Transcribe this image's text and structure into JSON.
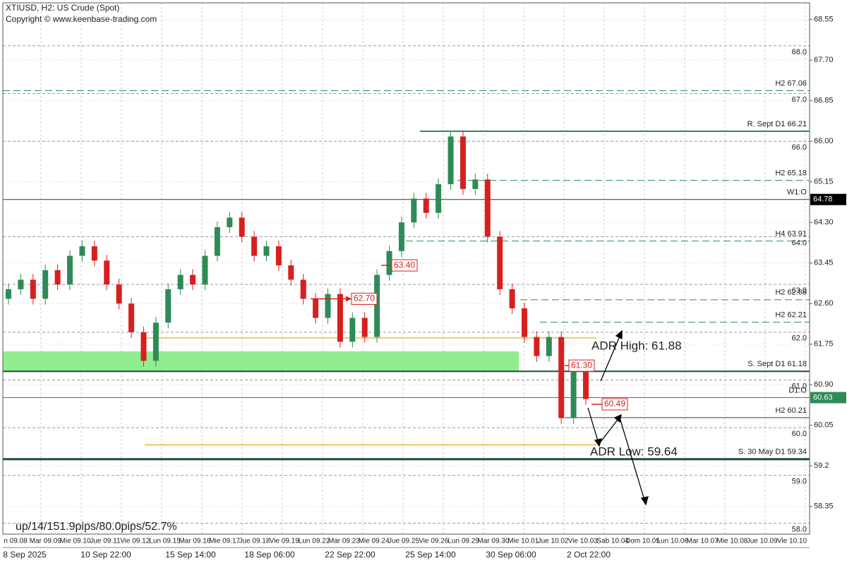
{
  "chart_data": {
    "type": "candlestick",
    "title": "XTIUSD, H2:  US Crude (Spot)",
    "subtitle": "Copyright © www.keenbase-trading.com",
    "stats_text": "up/14/151.9pips/80.0pips/52.7%",
    "ylim": [
      57.77,
      68.9
    ],
    "yticks": [
      68.55,
      {
        "value": 67.7,
        "label": "67.70"
      },
      66.85,
      {
        "value": 66,
        "label": "66.00"
      },
      65.15,
      {
        "value": 64.3,
        "label": "64.30"
      },
      63.45,
      {
        "value": 62.6,
        "label": "62.60"
      },
      61.75,
      {
        "value": 60.9,
        "label": "60.90"
      },
      60.05,
      59.2,
      58.35
    ],
    "round_levels": [
      {
        "value": 68,
        "label": "68.0"
      },
      {
        "value": 67,
        "label": "67.0"
      },
      {
        "value": 66,
        "label": "66.0"
      },
      {
        "value": 64,
        "label": "64.0"
      },
      {
        "value": 63,
        "label": "63.0"
      },
      {
        "value": 62,
        "label": "62.0"
      },
      {
        "value": 61,
        "label": "61.0"
      },
      {
        "value": 60,
        "label": "60.0"
      },
      {
        "value": 59,
        "label": "59.0"
      },
      {
        "value": 58,
        "label": "58.0"
      }
    ],
    "levels": [
      {
        "label": "H2 67.06",
        "value": 67.06,
        "color": "#2e8b57",
        "dash": true
      },
      {
        "label": "R. Sept D1 66.21",
        "value": 66.21,
        "color": "#2e8b57",
        "dash": false,
        "width": 2
      },
      {
        "label": "H2 65.18",
        "value": 65.18,
        "color": "#2e8b57",
        "dash": true
      },
      {
        "label": "W1:O",
        "value": 64.78,
        "color": "#333333",
        "dash": false,
        "price_box": true
      },
      {
        "label": "H4 63.91",
        "value": 63.91,
        "color": "#2e8b57",
        "dash": true
      },
      {
        "label": "H2 62.68",
        "value": 62.68,
        "color": "#2e8b57",
        "dash": true
      },
      {
        "label": "H2 62.21",
        "value": 62.21,
        "color": "#2e8b57",
        "dash": true
      },
      {
        "label": "S. Sept D1 61.18",
        "value": 61.18,
        "color": "#1f4d3d",
        "dash": false,
        "width": 2
      },
      {
        "label": "D1:O",
        "value": 60.63,
        "color": "#2e8b57",
        "dash": false,
        "price_box": true
      },
      {
        "label": "H2 60.21",
        "value": 60.21,
        "color": "#1f4d3d",
        "dash": false
      },
      {
        "label": "S. 30 May D1 59.34",
        "value": 59.34,
        "color": "#1f4d3d",
        "dash": false,
        "width": 3
      }
    ],
    "zone": {
      "values": [
        61.18,
        61.6
      ],
      "color": "#90ee90"
    },
    "adr": [
      {
        "label": "ADR High: 61.88",
        "value": 61.88
      },
      {
        "label": "ADR Low: 59.64",
        "value": 59.64
      }
    ],
    "adr_color": "#e8a317",
    "markers": [
      {
        "label": "63.40",
        "value": 63.4
      },
      {
        "label": "62.70",
        "value": 62.7
      },
      {
        "label": "61.30",
        "value": 61.3
      },
      {
        "label": "60.49",
        "value": 60.49
      }
    ],
    "up_color": "#2e8b57",
    "down_color": "#d62020",
    "ohlc": [
      [
        62.7,
        63.02,
        62.58,
        62.9
      ],
      [
        62.9,
        63.22,
        62.78,
        63.1
      ],
      [
        63.1,
        63.22,
        62.58,
        62.7
      ],
      [
        62.7,
        63.42,
        62.58,
        63.3
      ],
      [
        63.3,
        63.42,
        62.88,
        63.0
      ],
      [
        63.0,
        63.72,
        62.88,
        63.6
      ],
      [
        63.6,
        63.92,
        63.48,
        63.8
      ],
      [
        63.8,
        63.92,
        63.38,
        63.5
      ],
      [
        63.5,
        63.62,
        62.88,
        63.0
      ],
      [
        63.0,
        63.12,
        62.48,
        62.6
      ],
      [
        62.6,
        62.72,
        61.88,
        62.0
      ],
      [
        62.0,
        62.12,
        61.28,
        61.4
      ],
      [
        61.4,
        62.32,
        61.28,
        62.2
      ],
      [
        62.2,
        63.02,
        62.08,
        62.9
      ],
      [
        62.9,
        63.32,
        62.78,
        63.2
      ],
      [
        63.2,
        63.32,
        62.88,
        63.0
      ],
      [
        63.0,
        63.72,
        62.88,
        63.6
      ],
      [
        63.6,
        64.32,
        63.48,
        64.2
      ],
      [
        64.2,
        64.52,
        64.08,
        64.4
      ],
      [
        64.4,
        64.52,
        63.88,
        64.0
      ],
      [
        64.0,
        64.12,
        63.48,
        63.6
      ],
      [
        63.6,
        63.92,
        63.48,
        63.8
      ],
      [
        63.8,
        63.92,
        63.28,
        63.4
      ],
      [
        63.4,
        63.52,
        62.98,
        63.1
      ],
      [
        63.1,
        63.22,
        62.58,
        62.7
      ],
      [
        62.7,
        62.82,
        62.18,
        62.3
      ],
      [
        62.3,
        62.92,
        62.18,
        62.8
      ],
      [
        62.8,
        62.92,
        61.68,
        61.8
      ],
      [
        61.8,
        62.42,
        61.68,
        62.3
      ],
      [
        62.3,
        62.42,
        61.78,
        61.9
      ],
      [
        61.9,
        63.32,
        61.78,
        63.2
      ],
      [
        63.2,
        63.82,
        63.08,
        63.7
      ],
      [
        63.7,
        64.42,
        63.58,
        64.3
      ],
      [
        64.3,
        64.92,
        64.18,
        64.8
      ],
      [
        64.8,
        64.92,
        64.38,
        64.5
      ],
      [
        64.5,
        65.22,
        64.38,
        65.1
      ],
      [
        65.1,
        66.21,
        64.98,
        66.1
      ],
      [
        66.1,
        66.22,
        64.88,
        65.0
      ],
      [
        65.0,
        65.32,
        64.88,
        65.2
      ],
      [
        65.2,
        65.32,
        63.88,
        64.0
      ],
      [
        64.0,
        64.12,
        62.78,
        62.9
      ],
      [
        62.9,
        63.02,
        62.38,
        62.5
      ],
      [
        62.5,
        62.62,
        61.78,
        61.9
      ],
      [
        61.9,
        62.02,
        61.38,
        61.5
      ],
      [
        61.5,
        62.02,
        61.38,
        61.9
      ],
      [
        61.9,
        62.02,
        60.08,
        60.2
      ],
      [
        60.2,
        61.3,
        60.08,
        61.2
      ],
      [
        61.2,
        61.32,
        60.48,
        60.6
      ]
    ],
    "x_labels": [
      "8 Sep 2025",
      "10 Sep 22:00",
      "15 Sep 14:00",
      "18 Sep 06:00",
      "22 Sep 22:00",
      "25 Sep 14:00",
      "30 Sep 06:00",
      "2 Oct 22:00"
    ],
    "day_labels": [
      "n 09.08",
      "Mar 09.09",
      "Mie 09.10",
      "Jue 09.11",
      "Vie 09.12",
      "Lun 09.15",
      "Mar 09.16",
      "Mie 09.17",
      "Jue 09.18",
      "Vie 09.19",
      "Lun 09.22",
      "Mar 09.23",
      "Mie 09.24",
      "Jue 09.25",
      "Vie 09.26",
      "Lun 09.29",
      "Mar 09.30",
      "Mie 10.01",
      "Jue 10.02",
      "Vie 10.03",
      "Sab 10.04",
      "Dom 10.05",
      "Lun 10.06",
      "Mar 10.07",
      "Mie 10.08",
      "Jue 10.09",
      "Vie 10.10"
    ]
  }
}
